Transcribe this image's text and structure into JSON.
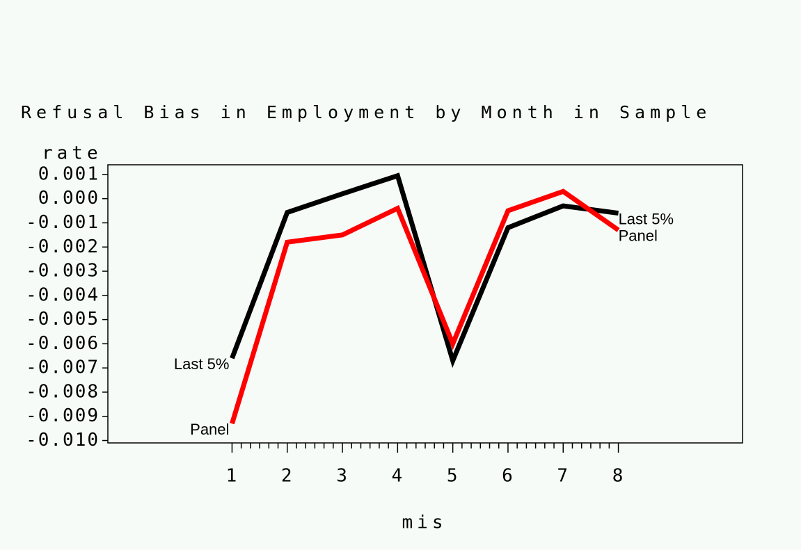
{
  "chart_data": {
    "type": "line",
    "title": "Refusal Bias in Employment by Month in Sample",
    "y_label": "rate",
    "x_label": "mis",
    "x": [
      1,
      2,
      3,
      4,
      5,
      6,
      7,
      8
    ],
    "xlim": [
      -1.25,
      10.25
    ],
    "xticks": [
      1,
      2,
      3,
      4,
      5,
      6,
      7,
      8
    ],
    "ylim": [
      -0.0101,
      0.0014
    ],
    "yticks": [
      0.001,
      {
        "value": 0,
        "label": "0.000"
      },
      -0.001,
      -0.002,
      -0.003,
      -0.004,
      -0.005,
      -0.006,
      -0.007,
      -0.008,
      -0.009,
      {
        "value": -0.01,
        "label": "-0.010"
      }
    ],
    "series": [
      {
        "name": "Last 5%",
        "color": "#000000",
        "values": [
          -0.0066,
          -0.00057,
          0.0002,
          0.00095,
          -0.0067,
          -0.0012,
          -0.0003,
          -0.0006
        ]
      },
      {
        "name": "Panel",
        "color": "#ff0000",
        "values": [
          -0.0093,
          -0.0018,
          -0.0015,
          -0.0004,
          -0.006,
          -0.0005,
          0.0003,
          -0.0013
        ]
      }
    ]
  }
}
